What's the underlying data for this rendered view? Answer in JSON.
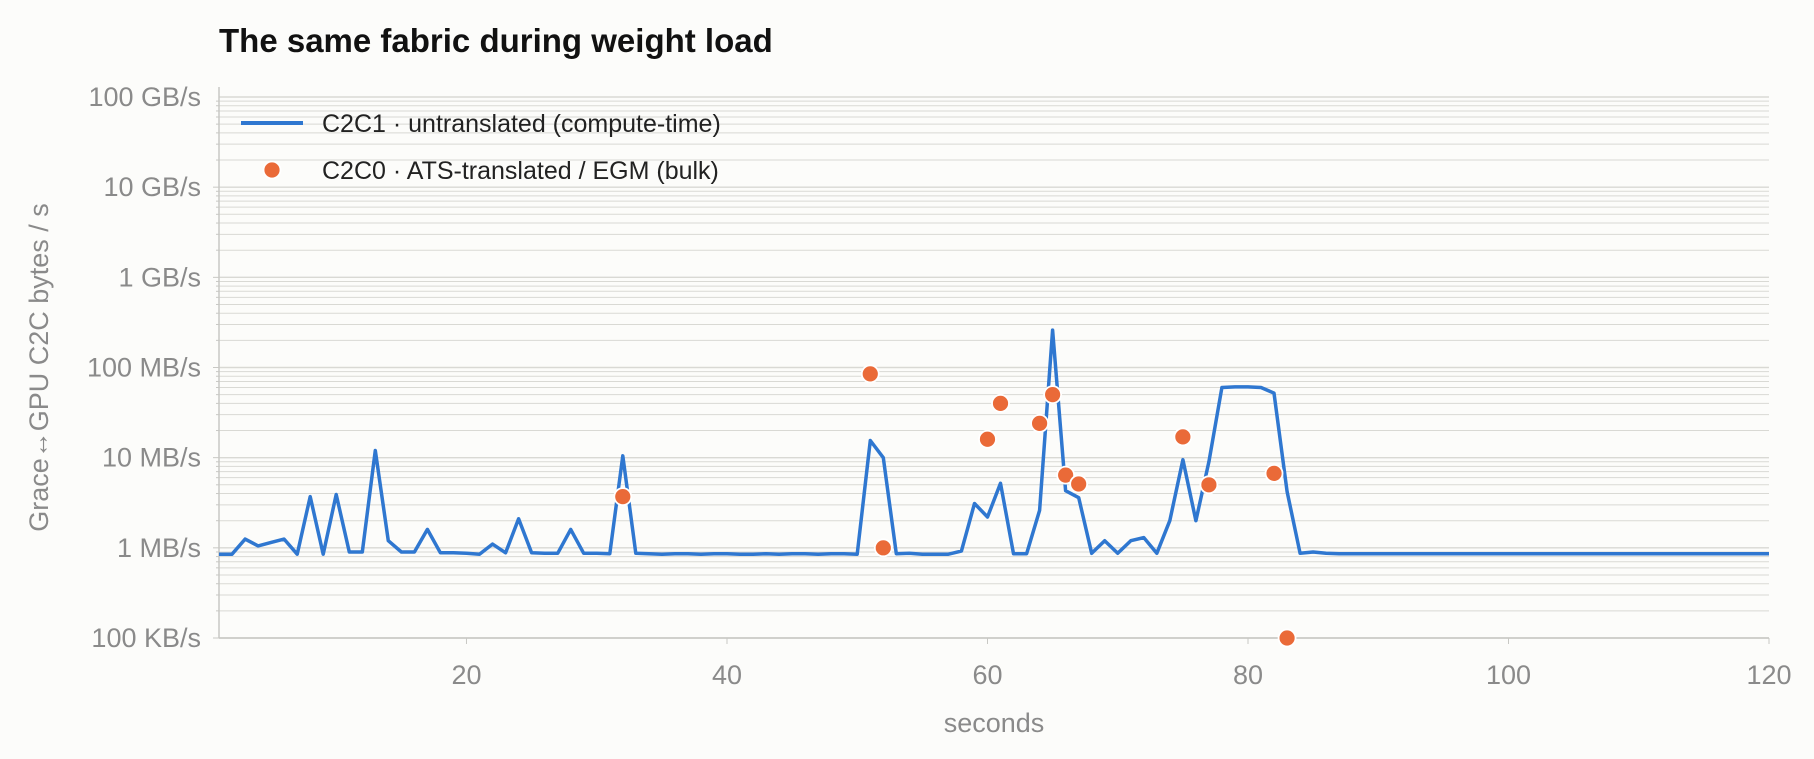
{
  "chart_data": {
    "type": "line",
    "title": "The same fabric during weight load",
    "xlabel": "seconds",
    "ylabel": "Grace↔GPU C2C bytes / s",
    "y_scale": "log",
    "xlim": [
      1,
      120
    ],
    "ylim": [
      100000,
      100000000000
    ],
    "x_ticks": [
      20,
      40,
      60,
      80,
      100,
      120
    ],
    "x_tick_labels": [
      "20",
      "40",
      "60",
      "80",
      "100",
      "120"
    ],
    "y_ticks": [
      100000,
      1000000,
      10000000,
      100000000,
      1000000000,
      10000000000,
      100000000000
    ],
    "y_tick_labels": [
      "100 KB/s",
      "1 MB/s",
      "10 MB/s",
      "100 MB/s",
      "1 GB/s",
      "10 GB/s",
      "100 GB/s"
    ],
    "grid": true,
    "legend_position": "top-left",
    "colors": {
      "line": "#2f77d0",
      "dots": "#ea6a38",
      "grid": "#d9d9d4",
      "axis": "#c8c8c4",
      "tick_text": "#8a8a8a"
    },
    "series": [
      {
        "name": "C2C1 · untranslated (compute-time)",
        "kind": "line",
        "x": [
          1,
          2,
          3,
          4,
          5,
          6,
          7,
          8,
          9,
          10,
          11,
          12,
          13,
          14,
          15,
          16,
          17,
          18,
          19,
          20,
          21,
          22,
          23,
          24,
          25,
          26,
          27,
          28,
          29,
          30,
          31,
          32,
          33,
          34,
          35,
          36,
          37,
          38,
          39,
          40,
          41,
          42,
          43,
          44,
          45,
          46,
          47,
          48,
          49,
          50,
          51,
          52,
          53,
          54,
          55,
          56,
          57,
          58,
          59,
          60,
          61,
          62,
          63,
          64,
          65,
          66,
          67,
          68,
          69,
          70,
          71,
          72,
          73,
          74,
          75,
          76,
          77,
          78,
          79,
          80,
          81,
          82,
          83,
          84,
          85,
          86,
          87,
          88,
          89,
          90,
          91,
          92,
          93,
          94,
          95,
          96,
          97,
          98,
          99,
          100,
          101,
          102,
          103,
          104,
          105,
          106,
          107,
          108,
          109,
          110,
          111,
          112,
          113,
          114,
          115,
          116,
          117,
          118,
          119,
          120
        ],
        "y": [
          850000,
          850000,
          1250000,
          1050000,
          1150000,
          1250000,
          850000,
          3700000,
          850000,
          3900000,
          900000,
          900000,
          12000000,
          1200000,
          900000,
          900000,
          1600000,
          880000,
          880000,
          870000,
          850000,
          1100000,
          880000,
          2100000,
          880000,
          870000,
          870000,
          1600000,
          870000,
          870000,
          860000,
          10500000,
          870000,
          860000,
          850000,
          860000,
          860000,
          850000,
          860000,
          860000,
          850000,
          850000,
          860000,
          850000,
          860000,
          860000,
          850000,
          860000,
          860000,
          850000,
          15500000,
          10000000,
          860000,
          870000,
          850000,
          850000,
          850000,
          920000,
          3100000,
          2200000,
          5200000,
          860000,
          860000,
          2600000,
          260000000,
          4300000,
          3600000,
          870000,
          1200000,
          870000,
          1200000,
          1300000,
          870000,
          2000000,
          9500000,
          2000000,
          9000000,
          60000000,
          61000000,
          61000000,
          60000000,
          52000000,
          4200000,
          870000,
          900000,
          870000,
          860000,
          860000,
          860000,
          860000,
          860000,
          860000,
          860000,
          860000,
          860000,
          860000,
          860000,
          860000,
          860000,
          860000,
          860000,
          860000,
          860000,
          860000,
          860000,
          860000,
          860000,
          860000,
          860000,
          860000,
          860000,
          860000,
          860000,
          860000,
          860000,
          860000,
          860000,
          860000,
          860000,
          860000
        ]
      },
      {
        "name": "C2C0 · ATS-translated / EGM (bulk)",
        "kind": "scatter",
        "x": [
          32,
          51,
          52,
          60,
          61,
          64,
          65,
          66,
          67,
          75,
          77,
          82,
          83
        ],
        "y": [
          3700000,
          85000000,
          1000000,
          16000000,
          40000000,
          24000000,
          50000000,
          6400000,
          5100000,
          17000000,
          5000000,
          6700000,
          100000
        ]
      }
    ]
  }
}
